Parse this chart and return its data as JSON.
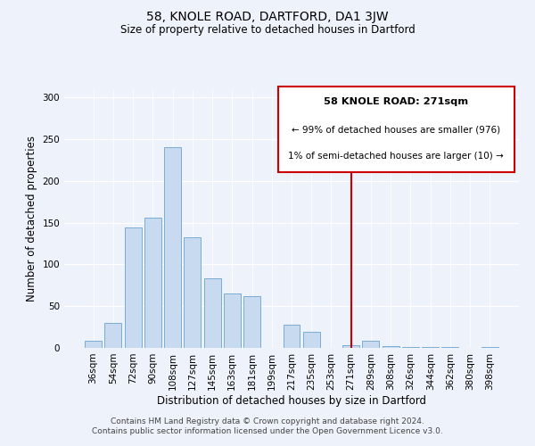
{
  "title": "58, KNOLE ROAD, DARTFORD, DA1 3JW",
  "subtitle": "Size of property relative to detached houses in Dartford",
  "xlabel": "Distribution of detached houses by size in Dartford",
  "ylabel": "Number of detached properties",
  "footer_lines": [
    "Contains HM Land Registry data © Crown copyright and database right 2024.",
    "Contains public sector information licensed under the Open Government Licence v3.0."
  ],
  "categories": [
    "36sqm",
    "54sqm",
    "72sqm",
    "90sqm",
    "108sqm",
    "127sqm",
    "145sqm",
    "163sqm",
    "181sqm",
    "199sqm",
    "217sqm",
    "235sqm",
    "253sqm",
    "271sqm",
    "289sqm",
    "308sqm",
    "326sqm",
    "344sqm",
    "362sqm",
    "380sqm",
    "398sqm"
  ],
  "values": [
    9,
    30,
    144,
    156,
    240,
    133,
    83,
    65,
    62,
    0,
    28,
    19,
    0,
    3,
    9,
    2,
    1,
    1,
    1,
    0,
    1
  ],
  "bar_color": "#c8daf0",
  "bar_edge_color": "#7aadd4",
  "highlight_index": 13,
  "highlight_line_color": "#cc0000",
  "legend_title": "58 KNOLE ROAD: 271sqm",
  "legend_line1": "← 99% of detached houses are smaller (976)",
  "legend_line2": "1% of semi-detached houses are larger (10) →",
  "legend_box_color": "#cc0000",
  "ylim": [
    0,
    310
  ],
  "yticks": [
    0,
    50,
    100,
    150,
    200,
    250,
    300
  ],
  "background_color": "#eef2fa",
  "title_fontsize": 10,
  "subtitle_fontsize": 8.5,
  "xlabel_fontsize": 8.5,
  "ylabel_fontsize": 8.5,
  "tick_fontsize": 7.5
}
